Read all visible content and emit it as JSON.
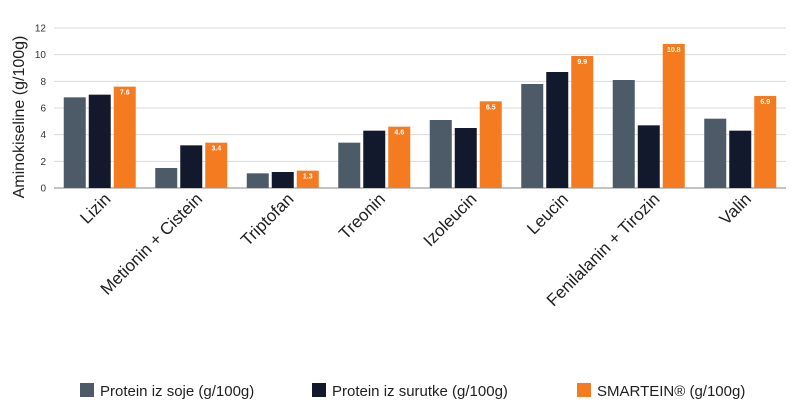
{
  "chart_data": {
    "type": "bar",
    "title": "",
    "xlabel": "",
    "ylabel": "Aminokiseline (g/100g)",
    "ylim": [
      0,
      12
    ],
    "yticks": [
      0,
      2,
      4,
      6,
      8,
      10,
      12
    ],
    "grid": true,
    "legend_position": "bottom",
    "categories": [
      "Lizin",
      "Metionin + Cistein",
      "Triptofan",
      "Treonin",
      "Izoleucin",
      "Leucin",
      "Fenilalanin + Tirozin",
      "Valin"
    ],
    "series": [
      {
        "name": "Protein iz soje (g/100g)",
        "color": "#4d5a68",
        "values": [
          6.8,
          1.5,
          1.1,
          3.4,
          5.1,
          7.8,
          8.1,
          5.2
        ]
      },
      {
        "name": "Protein iz surutke (g/100g)",
        "color": "#13192d",
        "values": [
          7.0,
          3.2,
          1.2,
          4.3,
          4.5,
          8.7,
          4.7,
          4.3
        ]
      },
      {
        "name": "SMARTEIN® (g/100g)",
        "color": "#f47b20",
        "values": [
          7.6,
          3.4,
          1.3,
          4.6,
          6.5,
          9.9,
          10.8,
          6.9
        ],
        "data_labels": [
          "7.6",
          "3.4",
          "1.3",
          "4.6",
          "6.5",
          "9.9",
          "10.8",
          "6.9"
        ]
      }
    ]
  }
}
